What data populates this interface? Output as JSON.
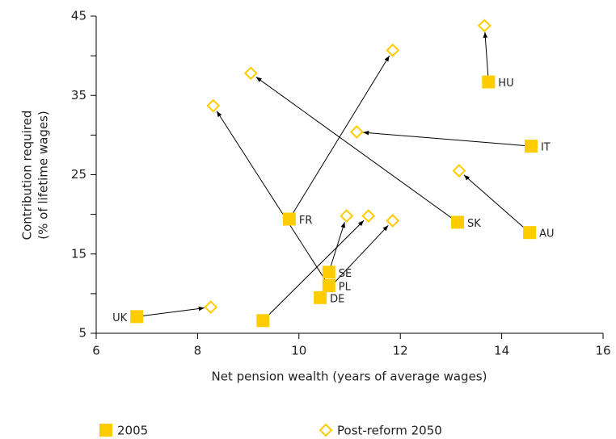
{
  "chart_data": {
    "type": "scatter",
    "xlabel": "Net pension wealth (years of average wages)",
    "ylabel": [
      "Contribution required",
      "(% of lifetime wages)"
    ],
    "categories": [
      "HU",
      "IT",
      "SK",
      "AU",
      "FR",
      "SE",
      "PL",
      "DE",
      null,
      "UK"
    ],
    "series": [
      {
        "name": "2005",
        "color": "#ffcc00",
        "marker": "square",
        "x": [
          13.74,
          14.58,
          13.13,
          14.55,
          9.81,
          10.59,
          10.59,
          10.42,
          9.29,
          6.8
        ],
        "values": [
          36.7,
          28.6,
          19.0,
          17.7,
          19.4,
          12.7,
          11.0,
          9.5,
          6.6,
          7.1
        ]
      },
      {
        "name": "Post-reform 2050",
        "color": "#ffcc00",
        "marker": "diamond",
        "x": [
          13.66,
          11.14,
          9.05,
          13.16,
          11.85,
          10.94,
          8.31,
          11.85,
          11.37,
          8.26
        ],
        "values": [
          43.8,
          30.4,
          37.8,
          25.5,
          40.7,
          19.8,
          33.7,
          19.2,
          19.8,
          8.3
        ]
      }
    ],
    "xlim": [
      6,
      16
    ],
    "xticks": [
      6,
      8,
      10,
      12,
      14,
      16
    ],
    "ylim": [
      5,
      45
    ],
    "yticks": [
      5,
      15,
      25,
      35,
      45
    ],
    "yminor_ticks": [
      10,
      20,
      30,
      40
    ],
    "arrows": true,
    "legend": "bottom-left"
  }
}
